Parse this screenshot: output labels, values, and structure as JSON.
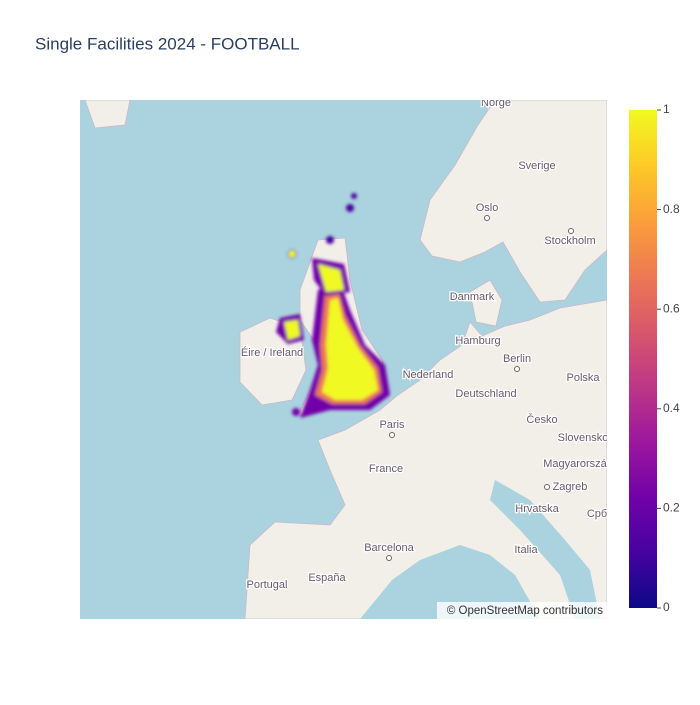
{
  "title": "Single Facilities 2024 - FOOTBALL",
  "map": {
    "labels": [
      "Norge",
      "Sverige",
      "Oslo",
      "Stockholm",
      "Danmark",
      "Hamburg",
      "Berlin",
      "Polska",
      "Nederland",
      "Deutschland",
      "Česko",
      "Éire / Ireland",
      "Paris",
      "France",
      "Slovensko",
      "Magyarorszá",
      "Zagreb",
      "Hrvatska",
      "Срб",
      "Barcelona",
      "Italia",
      "Portugal",
      "España"
    ],
    "attribution": "© OpenStreetMap contributors"
  },
  "colorbar": {
    "range": [
      0,
      1
    ],
    "ticks": [
      0,
      0.2,
      0.4,
      0.6,
      0.8,
      1
    ],
    "colors": [
      "#0d0887",
      "#46039f",
      "#7201a8",
      "#9c179e",
      "#bd3786",
      "#d8576b",
      "#ed7953",
      "#fb9f3a",
      "#fdca26",
      "#f0f921"
    ]
  }
}
